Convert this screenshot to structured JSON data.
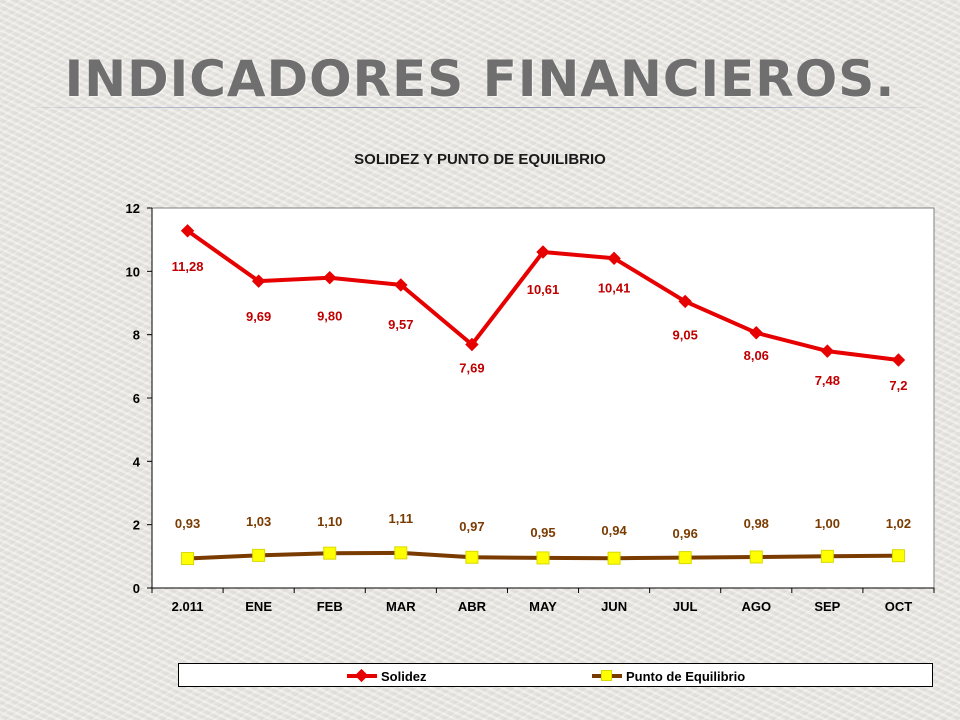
{
  "slide": {
    "title": "INDICADORES FINANCIEROS."
  },
  "colors": {
    "solidez": "#e60000",
    "punto_line": "#7a3b00",
    "punto_marker": "#ffff00",
    "label_solidez": "#c00000",
    "label_punto": "#7a3b00"
  },
  "chart_data": {
    "type": "line",
    "title": "SOLIDEZ Y PUNTO DE EQUILIBRIO",
    "categories": [
      "2.011",
      "ENE",
      "FEB",
      "MAR",
      "ABR",
      "MAY",
      "JUN",
      "JUL",
      "AGO",
      "SEP",
      "OCT"
    ],
    "yticks": [
      "0",
      "2",
      "4",
      "6",
      "8",
      "10",
      "12"
    ],
    "ylim": [
      0,
      12
    ],
    "grid": false,
    "legend_position": "bottom",
    "series": [
      {
        "name": "Solidez",
        "values": [
          11.28,
          9.69,
          9.8,
          9.57,
          7.69,
          10.61,
          10.41,
          9.05,
          8.06,
          7.48,
          7.2
        ],
        "labels": [
          "11,28",
          "9,69",
          "9,80",
          "9,57",
          "7,69",
          "10,61",
          "10,41",
          "9,05",
          "8,06",
          "7,48",
          "7,2"
        ],
        "marker": "diamond"
      },
      {
        "name": "Punto de Equilibrio",
        "values": [
          0.93,
          1.03,
          1.1,
          1.11,
          0.97,
          0.95,
          0.94,
          0.96,
          0.98,
          1.0,
          1.02
        ],
        "labels": [
          "0,93",
          "1,03",
          "1,10",
          "1,11",
          "0,97",
          "0,95",
          "0,94",
          "0,96",
          "0,98",
          "1,00",
          "1,02"
        ],
        "marker": "square"
      }
    ]
  }
}
